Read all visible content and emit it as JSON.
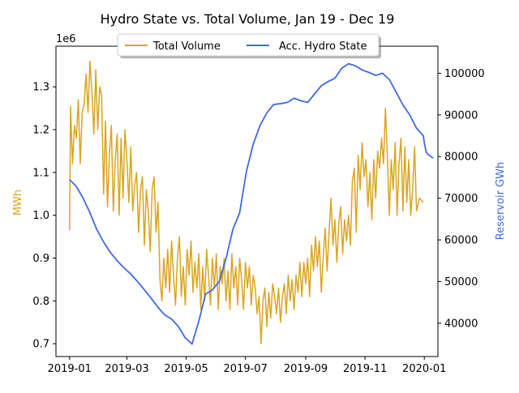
{
  "chart_data": {
    "type": "line",
    "title": "Hydro State vs. Total Volume, Jan 19 - Dec 19",
    "left_axis": {
      "label": "MWh",
      "label_color": "#DAA520",
      "scale_label": "1e6",
      "ylim": [
        670000,
        1395000
      ],
      "ticks": [
        700000,
        800000,
        900000,
        1000000,
        1100000,
        1200000,
        1300000
      ],
      "tick_labels": [
        "0.7",
        "0.8",
        "0.9",
        "1.0",
        "1.1",
        "1.2",
        "1.3"
      ]
    },
    "right_axis": {
      "label": "Reservoir GWh",
      "label_color": "#4169E1",
      "ylim": [
        32000,
        106500
      ],
      "ticks": [
        40000,
        50000,
        60000,
        70000,
        80000,
        90000,
        100000
      ],
      "tick_labels": [
        "40000",
        "50000",
        "60000",
        "70000",
        "80000",
        "90000",
        "100000"
      ]
    },
    "x_axis": {
      "xlim": [
        "2018-12-18",
        "2020-01-15"
      ],
      "ticks": [
        "2019-01-01",
        "2019-03-01",
        "2019-05-01",
        "2019-07-01",
        "2019-09-01",
        "2019-11-01",
        "2020-01-01"
      ],
      "tick_labels": [
        "2019-01",
        "2019-03",
        "2019-05",
        "2019-07",
        "2019-09",
        "2019-11",
        "2020-01"
      ]
    },
    "legend": {
      "placement": "top-center",
      "entries": [
        "Total Volume",
        "Acc. Hydro State"
      ]
    },
    "series": [
      {
        "name": "Total Volume",
        "axis": "left",
        "color": "#DAA520",
        "points": [
          [
            "2019-01-01",
            965000
          ],
          [
            "2019-01-02",
            1255000
          ],
          [
            "2019-01-04",
            1120000
          ],
          [
            "2019-01-06",
            1210000
          ],
          [
            "2019-01-08",
            1180000
          ],
          [
            "2019-01-10",
            1270000
          ],
          [
            "2019-01-12",
            1120000
          ],
          [
            "2019-01-14",
            1240000
          ],
          [
            "2019-01-16",
            1260000
          ],
          [
            "2019-01-18",
            1330000
          ],
          [
            "2019-01-20",
            1240000
          ],
          [
            "2019-01-22",
            1360000
          ],
          [
            "2019-01-24",
            1290000
          ],
          [
            "2019-01-26",
            1190000
          ],
          [
            "2019-01-28",
            1340000
          ],
          [
            "2019-01-30",
            1200000
          ],
          [
            "2019-02-01",
            1300000
          ],
          [
            "2019-02-03",
            1280000
          ],
          [
            "2019-02-05",
            1050000
          ],
          [
            "2019-02-07",
            1220000
          ],
          [
            "2019-02-09",
            1020000
          ],
          [
            "2019-02-11",
            1140000
          ],
          [
            "2019-02-13",
            1210000
          ],
          [
            "2019-02-15",
            1010000
          ],
          [
            "2019-02-17",
            1130000
          ],
          [
            "2019-02-19",
            1190000
          ],
          [
            "2019-02-21",
            1000000
          ],
          [
            "2019-02-23",
            1180000
          ],
          [
            "2019-02-25",
            1040000
          ],
          [
            "2019-02-27",
            1200000
          ],
          [
            "2019-03-01",
            1130000
          ],
          [
            "2019-03-03",
            1030000
          ],
          [
            "2019-03-05",
            1160000
          ],
          [
            "2019-03-07",
            1010000
          ],
          [
            "2019-03-09",
            1070000
          ],
          [
            "2019-03-11",
            1100000
          ],
          [
            "2019-03-13",
            960000
          ],
          [
            "2019-03-15",
            1060000
          ],
          [
            "2019-03-17",
            1090000
          ],
          [
            "2019-03-19",
            930000
          ],
          [
            "2019-03-21",
            1060000
          ],
          [
            "2019-03-23",
            1010000
          ],
          [
            "2019-03-25",
            915000
          ],
          [
            "2019-03-27",
            1060000
          ],
          [
            "2019-03-29",
            1090000
          ],
          [
            "2019-03-31",
            960000
          ],
          [
            "2019-04-02",
            1030000
          ],
          [
            "2019-04-04",
            850000
          ],
          [
            "2019-04-06",
            800000
          ],
          [
            "2019-04-08",
            900000
          ],
          [
            "2019-04-10",
            830000
          ],
          [
            "2019-04-12",
            920000
          ],
          [
            "2019-04-14",
            820000
          ],
          [
            "2019-04-16",
            940000
          ],
          [
            "2019-04-18",
            860000
          ],
          [
            "2019-04-20",
            790000
          ],
          [
            "2019-04-22",
            900000
          ],
          [
            "2019-04-24",
            950000
          ],
          [
            "2019-04-26",
            810000
          ],
          [
            "2019-04-28",
            880000
          ],
          [
            "2019-04-30",
            790000
          ],
          [
            "2019-05-02",
            920000
          ],
          [
            "2019-05-04",
            860000
          ],
          [
            "2019-05-06",
            940000
          ],
          [
            "2019-05-08",
            820000
          ],
          [
            "2019-05-10",
            890000
          ],
          [
            "2019-05-12",
            830000
          ],
          [
            "2019-05-14",
            910000
          ],
          [
            "2019-05-16",
            780000
          ],
          [
            "2019-05-18",
            880000
          ],
          [
            "2019-05-20",
            800000
          ],
          [
            "2019-05-22",
            920000
          ],
          [
            "2019-05-24",
            860000
          ],
          [
            "2019-05-26",
            790000
          ],
          [
            "2019-05-28",
            900000
          ],
          [
            "2019-05-30",
            830000
          ],
          [
            "2019-06-01",
            910000
          ],
          [
            "2019-06-03",
            780000
          ],
          [
            "2019-06-05",
            880000
          ],
          [
            "2019-06-07",
            840000
          ],
          [
            "2019-06-09",
            900000
          ],
          [
            "2019-06-11",
            800000
          ],
          [
            "2019-06-13",
            870000
          ],
          [
            "2019-06-15",
            780000
          ],
          [
            "2019-06-17",
            910000
          ],
          [
            "2019-06-19",
            830000
          ],
          [
            "2019-06-21",
            880000
          ],
          [
            "2019-06-23",
            790000
          ],
          [
            "2019-06-25",
            900000
          ],
          [
            "2019-06-27",
            850000
          ],
          [
            "2019-06-29",
            780000
          ],
          [
            "2019-07-01",
            890000
          ],
          [
            "2019-07-03",
            830000
          ],
          [
            "2019-07-05",
            880000
          ],
          [
            "2019-07-07",
            790000
          ],
          [
            "2019-07-09",
            860000
          ],
          [
            "2019-07-11",
            830000
          ],
          [
            "2019-07-13",
            770000
          ],
          [
            "2019-07-15",
            810000
          ],
          [
            "2019-07-17",
            700000
          ],
          [
            "2019-07-19",
            800000
          ],
          [
            "2019-07-21",
            830000
          ],
          [
            "2019-07-23",
            740000
          ],
          [
            "2019-07-25",
            820000
          ],
          [
            "2019-07-27",
            760000
          ],
          [
            "2019-07-29",
            840000
          ],
          [
            "2019-07-31",
            810000
          ],
          [
            "2019-08-02",
            770000
          ],
          [
            "2019-08-04",
            830000
          ],
          [
            "2019-08-06",
            750000
          ],
          [
            "2019-08-08",
            810000
          ],
          [
            "2019-08-10",
            840000
          ],
          [
            "2019-08-12",
            770000
          ],
          [
            "2019-08-14",
            860000
          ],
          [
            "2019-08-16",
            800000
          ],
          [
            "2019-08-18",
            850000
          ],
          [
            "2019-08-20",
            780000
          ],
          [
            "2019-08-22",
            860000
          ],
          [
            "2019-08-24",
            820000
          ],
          [
            "2019-08-26",
            890000
          ],
          [
            "2019-08-28",
            810000
          ],
          [
            "2019-08-30",
            890000
          ],
          [
            "2019-09-01",
            840000
          ],
          [
            "2019-09-03",
            900000
          ],
          [
            "2019-09-05",
            810000
          ],
          [
            "2019-09-07",
            930000
          ],
          [
            "2019-09-09",
            870000
          ],
          [
            "2019-09-11",
            950000
          ],
          [
            "2019-09-13",
            880000
          ],
          [
            "2019-09-15",
            940000
          ],
          [
            "2019-09-17",
            820000
          ],
          [
            "2019-09-19",
            900000
          ],
          [
            "2019-09-21",
            970000
          ],
          [
            "2019-09-23",
            870000
          ],
          [
            "2019-09-25",
            960000
          ],
          [
            "2019-09-27",
            1040000
          ],
          [
            "2019-09-29",
            930000
          ],
          [
            "2019-10-01",
            990000
          ],
          [
            "2019-10-03",
            890000
          ],
          [
            "2019-10-05",
            980000
          ],
          [
            "2019-10-07",
            1020000
          ],
          [
            "2019-10-09",
            910000
          ],
          [
            "2019-10-11",
            990000
          ],
          [
            "2019-10-13",
            940000
          ],
          [
            "2019-10-15",
            1000000
          ],
          [
            "2019-10-17",
            930000
          ],
          [
            "2019-10-19",
            1080000
          ],
          [
            "2019-10-21",
            1110000
          ],
          [
            "2019-10-23",
            960000
          ],
          [
            "2019-10-25",
            1140000
          ],
          [
            "2019-10-27",
            1060000
          ],
          [
            "2019-10-29",
            1170000
          ],
          [
            "2019-10-31",
            1090000
          ],
          [
            "2019-11-02",
            1130000
          ],
          [
            "2019-11-04",
            1020000
          ],
          [
            "2019-11-06",
            1100000
          ],
          [
            "2019-11-08",
            990000
          ],
          [
            "2019-11-10",
            1130000
          ],
          [
            "2019-11-12",
            1040000
          ],
          [
            "2019-11-14",
            1150000
          ],
          [
            "2019-11-16",
            1110000
          ],
          [
            "2019-11-18",
            1180000
          ],
          [
            "2019-11-20",
            1120000
          ],
          [
            "2019-11-22",
            1250000
          ],
          [
            "2019-11-24",
            1140000
          ],
          [
            "2019-11-26",
            1000000
          ],
          [
            "2019-11-28",
            1130000
          ],
          [
            "2019-11-30",
            1060000
          ],
          [
            "2019-12-02",
            1170000
          ],
          [
            "2019-12-04",
            1000000
          ],
          [
            "2019-12-06",
            1120000
          ],
          [
            "2019-12-08",
            1180000
          ],
          [
            "2019-12-10",
            1010000
          ],
          [
            "2019-12-12",
            1160000
          ],
          [
            "2019-12-14",
            1030000
          ],
          [
            "2019-12-16",
            1130000
          ],
          [
            "2019-12-18",
            1000000
          ],
          [
            "2019-12-20",
            1060000
          ],
          [
            "2019-12-22",
            1160000
          ],
          [
            "2019-12-24",
            1010000
          ],
          [
            "2019-12-27",
            1040000
          ],
          [
            "2019-12-31",
            1030000
          ]
        ]
      },
      {
        "name": "Acc. Hydro State",
        "axis": "right",
        "color": "#4169E1",
        "points": [
          [
            "2019-01-01",
            74500
          ],
          [
            "2019-01-08",
            72800
          ],
          [
            "2019-01-15",
            70000
          ],
          [
            "2019-01-22",
            66500
          ],
          [
            "2019-01-29",
            62500
          ],
          [
            "2019-02-05",
            59500
          ],
          [
            "2019-02-12",
            57000
          ],
          [
            "2019-02-19",
            55000
          ],
          [
            "2019-02-26",
            53300
          ],
          [
            "2019-03-05",
            51800
          ],
          [
            "2019-03-12",
            50000
          ],
          [
            "2019-03-19",
            48000
          ],
          [
            "2019-03-26",
            46000
          ],
          [
            "2019-04-02",
            43800
          ],
          [
            "2019-04-09",
            42000
          ],
          [
            "2019-04-16",
            41000
          ],
          [
            "2019-04-23",
            39200
          ],
          [
            "2019-04-30",
            36500
          ],
          [
            "2019-05-07",
            35000
          ],
          [
            "2019-05-14",
            40500
          ],
          [
            "2019-05-21",
            47000
          ],
          [
            "2019-05-28",
            48000
          ],
          [
            "2019-06-04",
            50000
          ],
          [
            "2019-06-11",
            55500
          ],
          [
            "2019-06-18",
            62500
          ],
          [
            "2019-06-25",
            66500
          ],
          [
            "2019-07-02",
            76500
          ],
          [
            "2019-07-09",
            83000
          ],
          [
            "2019-07-16",
            87500
          ],
          [
            "2019-07-23",
            90500
          ],
          [
            "2019-07-30",
            92500
          ],
          [
            "2019-08-06",
            92700
          ],
          [
            "2019-08-13",
            93000
          ],
          [
            "2019-08-20",
            94000
          ],
          [
            "2019-08-27",
            93400
          ],
          [
            "2019-09-03",
            93000
          ],
          [
            "2019-09-10",
            95000
          ],
          [
            "2019-09-17",
            97000
          ],
          [
            "2019-09-24",
            98000
          ],
          [
            "2019-10-01",
            98800
          ],
          [
            "2019-10-08",
            101200
          ],
          [
            "2019-10-15",
            102300
          ],
          [
            "2019-10-22",
            101800
          ],
          [
            "2019-10-29",
            100800
          ],
          [
            "2019-11-05",
            100200
          ],
          [
            "2019-11-12",
            99500
          ],
          [
            "2019-11-19",
            100000
          ],
          [
            "2019-11-26",
            98500
          ],
          [
            "2019-12-03",
            95500
          ],
          [
            "2019-12-10",
            92400
          ],
          [
            "2019-12-17",
            90000
          ],
          [
            "2019-12-24",
            86800
          ],
          [
            "2019-12-31",
            85000
          ],
          [
            "2020-01-01",
            83300
          ],
          [
            "2020-01-03",
            81000
          ],
          [
            "2020-01-05",
            80500
          ],
          [
            "2020-01-08",
            80000
          ],
          [
            "2020-01-10",
            79600
          ]
        ]
      }
    ]
  }
}
